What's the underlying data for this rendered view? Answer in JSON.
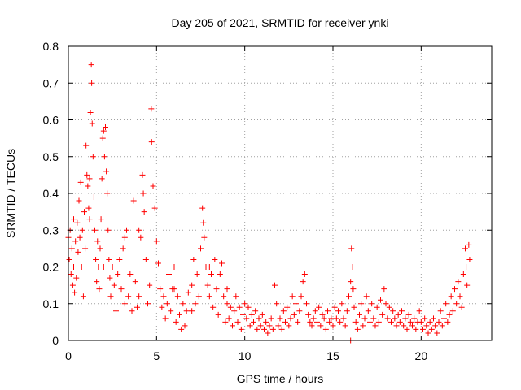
{
  "chart_data": {
    "type": "scatter",
    "title": "Day 205 of 2021, SRMTID for receiver ynki",
    "xlabel": "GPS time / hours",
    "ylabel": "SRMTID / TECUs",
    "xlim": [
      0,
      24
    ],
    "ylim": [
      0,
      0.8
    ],
    "xticks": [
      0,
      5,
      10,
      15,
      20
    ],
    "xtick_labels": [
      "0",
      "5",
      "10",
      "15",
      "20"
    ],
    "yticks": [
      0,
      0.1,
      0.2,
      0.3,
      0.4,
      0.5,
      0.6,
      0.7,
      0.8
    ],
    "ytick_labels": [
      "0",
      "0.1",
      "0.2",
      "0.3",
      "0.4",
      "0.5",
      "0.6",
      "0.7",
      "0.8"
    ],
    "grid": true,
    "marker": "+",
    "color": "#ff0000",
    "series": [
      {
        "name": "SRMTID",
        "points": [
          [
            0.0,
            0.28
          ],
          [
            0.05,
            0.22
          ],
          [
            0.1,
            0.3
          ],
          [
            0.15,
            0.18
          ],
          [
            0.2,
            0.25
          ],
          [
            0.25,
            0.15
          ],
          [
            0.3,
            0.2
          ],
          [
            0.35,
            0.13
          ],
          [
            0.4,
            0.27
          ],
          [
            0.45,
            0.17
          ],
          [
            0.5,
            0.32
          ],
          [
            0.55,
            0.24
          ],
          [
            0.6,
            0.38
          ],
          [
            0.65,
            0.28
          ],
          [
            0.7,
            0.43
          ],
          [
            0.75,
            0.2
          ],
          [
            0.8,
            0.3
          ],
          [
            0.85,
            0.12
          ],
          [
            0.9,
            0.35
          ],
          [
            0.95,
            0.25
          ],
          [
            1.0,
            0.53
          ],
          [
            1.05,
            0.45
          ],
          [
            1.1,
            0.42
          ],
          [
            1.15,
            0.36
          ],
          [
            1.2,
            0.33
          ],
          [
            1.25,
            0.62
          ],
          [
            1.3,
            0.75
          ],
          [
            1.32,
            0.7
          ],
          [
            1.35,
            0.59
          ],
          [
            1.4,
            0.5
          ],
          [
            1.45,
            0.39
          ],
          [
            1.5,
            0.3
          ],
          [
            1.55,
            0.22
          ],
          [
            1.6,
            0.16
          ],
          [
            1.65,
            0.27
          ],
          [
            1.7,
            0.2
          ],
          [
            1.75,
            0.14
          ],
          [
            1.8,
            0.25
          ],
          [
            1.85,
            0.33
          ],
          [
            1.9,
            0.44
          ],
          [
            1.95,
            0.55
          ],
          [
            2.0,
            0.57
          ],
          [
            2.05,
            0.5
          ],
          [
            2.1,
            0.58
          ],
          [
            2.15,
            0.46
          ],
          [
            2.2,
            0.4
          ],
          [
            2.25,
            0.3
          ],
          [
            2.3,
            0.22
          ],
          [
            2.35,
            0.17
          ],
          [
            2.4,
            0.12
          ],
          [
            2.5,
            0.2
          ],
          [
            2.6,
            0.15
          ],
          [
            2.7,
            0.08
          ],
          [
            2.8,
            0.18
          ],
          [
            2.9,
            0.22
          ],
          [
            3.0,
            0.14
          ],
          [
            3.1,
            0.25
          ],
          [
            3.2,
            0.1
          ],
          [
            3.3,
            0.3
          ],
          [
            3.4,
            0.12
          ],
          [
            3.5,
            0.18
          ],
          [
            3.6,
            0.08
          ],
          [
            3.7,
            0.38
          ],
          [
            3.8,
            0.16
          ],
          [
            3.9,
            0.09
          ],
          [
            4.0,
            0.12
          ],
          [
            4.1,
            0.28
          ],
          [
            4.2,
            0.45
          ],
          [
            4.25,
            0.4
          ],
          [
            4.3,
            0.35
          ],
          [
            4.4,
            0.22
          ],
          [
            4.5,
            0.1
          ],
          [
            4.6,
            0.15
          ],
          [
            4.7,
            0.63
          ],
          [
            4.72,
            0.54
          ],
          [
            4.8,
            0.42
          ],
          [
            4.9,
            0.36
          ],
          [
            5.0,
            0.27
          ],
          [
            5.1,
            0.21
          ],
          [
            5.2,
            0.14
          ],
          [
            5.3,
            0.09
          ],
          [
            5.4,
            0.12
          ],
          [
            5.5,
            0.06
          ],
          [
            5.6,
            0.1
          ],
          [
            5.7,
            0.18
          ],
          [
            5.8,
            0.08
          ],
          [
            5.9,
            0.14
          ],
          [
            6.0,
            0.2
          ],
          [
            6.1,
            0.05
          ],
          [
            6.2,
            0.12
          ],
          [
            6.3,
            0.07
          ],
          [
            6.4,
            0.03
          ],
          [
            6.5,
            0.1
          ],
          [
            6.6,
            0.04
          ],
          [
            6.7,
            0.08
          ],
          [
            6.8,
            0.13
          ],
          [
            6.9,
            0.2
          ],
          [
            7.0,
            0.15
          ],
          [
            7.1,
            0.22
          ],
          [
            7.2,
            0.1
          ],
          [
            7.3,
            0.18
          ],
          [
            7.4,
            0.12
          ],
          [
            7.5,
            0.25
          ],
          [
            7.6,
            0.36
          ],
          [
            7.65,
            0.32
          ],
          [
            7.7,
            0.28
          ],
          [
            7.8,
            0.2
          ],
          [
            7.9,
            0.15
          ],
          [
            8.0,
            0.12
          ],
          [
            8.1,
            0.18
          ],
          [
            8.2,
            0.09
          ],
          [
            8.3,
            0.22
          ],
          [
            8.4,
            0.14
          ],
          [
            8.5,
            0.07
          ],
          [
            8.6,
            0.18
          ],
          [
            8.7,
            0.21
          ],
          [
            8.8,
            0.12
          ],
          [
            8.9,
            0.05
          ],
          [
            9.0,
            0.1
          ],
          [
            9.1,
            0.06
          ],
          [
            9.2,
            0.09
          ],
          [
            9.3,
            0.04
          ],
          [
            9.4,
            0.08
          ],
          [
            9.5,
            0.12
          ],
          [
            9.6,
            0.05
          ],
          [
            9.7,
            0.09
          ],
          [
            9.8,
            0.03
          ],
          [
            9.9,
            0.07
          ],
          [
            10.0,
            0.1
          ],
          [
            10.1,
            0.06
          ],
          [
            10.2,
            0.09
          ],
          [
            10.3,
            0.04
          ],
          [
            10.4,
            0.07
          ],
          [
            10.5,
            0.05
          ],
          [
            10.6,
            0.08
          ],
          [
            10.7,
            0.03
          ],
          [
            10.8,
            0.06
          ],
          [
            10.9,
            0.04
          ],
          [
            11.0,
            0.07
          ],
          [
            11.1,
            0.03
          ],
          [
            11.2,
            0.05
          ],
          [
            11.3,
            0.02
          ],
          [
            11.4,
            0.04
          ],
          [
            11.5,
            0.06
          ],
          [
            11.6,
            0.03
          ],
          [
            11.7,
            0.15
          ],
          [
            11.8,
            0.1
          ],
          [
            11.9,
            0.04
          ],
          [
            12.0,
            0.06
          ],
          [
            12.1,
            0.03
          ],
          [
            12.2,
            0.08
          ],
          [
            12.3,
            0.05
          ],
          [
            12.4,
            0.09
          ],
          [
            12.5,
            0.04
          ],
          [
            12.6,
            0.06
          ],
          [
            12.7,
            0.12
          ],
          [
            12.8,
            0.07
          ],
          [
            12.9,
            0.1
          ],
          [
            13.0,
            0.05
          ],
          [
            13.1,
            0.08
          ],
          [
            13.2,
            0.12
          ],
          [
            13.3,
            0.16
          ],
          [
            13.4,
            0.18
          ],
          [
            13.5,
            0.1
          ],
          [
            13.6,
            0.07
          ],
          [
            13.7,
            0.05
          ],
          [
            13.8,
            0.04
          ],
          [
            13.9,
            0.06
          ],
          [
            14.0,
            0.08
          ],
          [
            14.1,
            0.05
          ],
          [
            14.2,
            0.09
          ],
          [
            14.3,
            0.04
          ],
          [
            14.4,
            0.07
          ],
          [
            14.5,
            0.06
          ],
          [
            14.6,
            0.03
          ],
          [
            14.7,
            0.08
          ],
          [
            14.8,
            0.05
          ],
          [
            14.9,
            0.06
          ],
          [
            15.0,
            0.04
          ],
          [
            15.1,
            0.09
          ],
          [
            15.2,
            0.06
          ],
          [
            15.3,
            0.08
          ],
          [
            15.4,
            0.05
          ],
          [
            15.5,
            0.1
          ],
          [
            15.6,
            0.06
          ],
          [
            15.7,
            0.04
          ],
          [
            15.8,
            0.08
          ],
          [
            15.9,
            0.12
          ],
          [
            16.0,
            0.16
          ],
          [
            16.05,
            0.25
          ],
          [
            16.1,
            0.2
          ],
          [
            16.15,
            0.14
          ],
          [
            16.2,
            0.09
          ],
          [
            16.3,
            0.05
          ],
          [
            16.4,
            0.03
          ],
          [
            16.5,
            0.07
          ],
          [
            16.6,
            0.1
          ],
          [
            16.7,
            0.04
          ],
          [
            16.8,
            0.06
          ],
          [
            16.9,
            0.12
          ],
          [
            17.0,
            0.08
          ],
          [
            17.1,
            0.05
          ],
          [
            17.2,
            0.1
          ],
          [
            17.3,
            0.06
          ],
          [
            17.4,
            0.04
          ],
          [
            17.5,
            0.09
          ],
          [
            17.6,
            0.05
          ],
          [
            17.7,
            0.11
          ],
          [
            17.8,
            0.07
          ],
          [
            17.9,
            0.14
          ],
          [
            18.0,
            0.1
          ],
          [
            18.1,
            0.06
          ],
          [
            18.2,
            0.09
          ],
          [
            18.3,
            0.05
          ],
          [
            18.4,
            0.08
          ],
          [
            18.5,
            0.06
          ],
          [
            18.6,
            0.04
          ],
          [
            18.7,
            0.07
          ],
          [
            18.8,
            0.05
          ],
          [
            18.9,
            0.08
          ],
          [
            19.0,
            0.04
          ],
          [
            19.1,
            0.06
          ],
          [
            19.2,
            0.03
          ],
          [
            19.3,
            0.07
          ],
          [
            19.4,
            0.05
          ],
          [
            19.5,
            0.04
          ],
          [
            19.6,
            0.06
          ],
          [
            19.7,
            0.03
          ],
          [
            19.8,
            0.05
          ],
          [
            19.9,
            0.08
          ],
          [
            20.0,
            0.05
          ],
          [
            20.1,
            0.03
          ],
          [
            20.2,
            0.06
          ],
          [
            20.3,
            0.04
          ],
          [
            20.4,
            0.02
          ],
          [
            20.5,
            0.05
          ],
          [
            20.6,
            0.03
          ],
          [
            20.7,
            0.06
          ],
          [
            20.8,
            0.04
          ],
          [
            20.9,
            0.02
          ],
          [
            21.0,
            0.05
          ],
          [
            21.1,
            0.08
          ],
          [
            21.2,
            0.04
          ],
          [
            21.3,
            0.06
          ],
          [
            21.4,
            0.1
          ],
          [
            21.5,
            0.05
          ],
          [
            21.6,
            0.07
          ],
          [
            21.7,
            0.12
          ],
          [
            21.8,
            0.08
          ],
          [
            21.9,
            0.14
          ],
          [
            22.0,
            0.1
          ],
          [
            22.1,
            0.16
          ],
          [
            22.2,
            0.12
          ],
          [
            22.3,
            0.09
          ],
          [
            22.4,
            0.18
          ],
          [
            22.5,
            0.25
          ],
          [
            22.55,
            0.2
          ],
          [
            22.6,
            0.15
          ],
          [
            22.7,
            0.26
          ],
          [
            22.75,
            0.22
          ],
          [
            16.0,
            0.0
          ],
          [
            0.3,
            0.33
          ],
          [
            1.2,
            0.44
          ],
          [
            2.0,
            0.2
          ],
          [
            3.2,
            0.28
          ],
          [
            4.0,
            0.3
          ],
          [
            6.0,
            0.14
          ],
          [
            7.0,
            0.08
          ],
          [
            8.0,
            0.2
          ],
          [
            9.0,
            0.14
          ]
        ]
      }
    ]
  }
}
